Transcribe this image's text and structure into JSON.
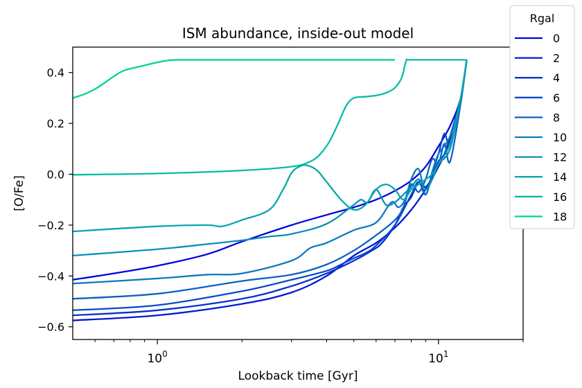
{
  "chart_data": {
    "type": "line",
    "title": "ISM abundance, inside-out model",
    "xlabel": "Lookback time [Gyr]",
    "ylabel": "[O/Fe]",
    "xscale": "log",
    "xlim": [
      0.5,
      20
    ],
    "ylim": [
      -0.65,
      0.5
    ],
    "grid": false,
    "legend": {
      "title": "Rgal",
      "placement": "outside-top-right"
    },
    "xticks_major": [
      {
        "value": 1,
        "base": "10",
        "exp": "0"
      },
      {
        "value": 10,
        "base": "10",
        "exp": "1"
      }
    ],
    "xticks_minor": [
      0.6,
      0.7,
      0.8,
      0.9,
      2,
      3,
      4,
      5,
      6,
      7,
      8,
      9,
      20
    ],
    "yticks": [
      {
        "value": 0.4,
        "label": "0.4"
      },
      {
        "value": 0.2,
        "label": "0.2"
      },
      {
        "value": 0.0,
        "label": "0.0"
      },
      {
        "value": -0.2,
        "label": "−0.2"
      },
      {
        "value": -0.4,
        "label": "−0.4"
      },
      {
        "value": -0.6,
        "label": "−0.6"
      }
    ],
    "series": [
      {
        "name": "0",
        "color": "#0000dd",
        "x": [
          0.5,
          0.7,
          1.0,
          1.5,
          2.0,
          3.0,
          4.0,
          5.0,
          6.0,
          7.0,
          8.0,
          9.0,
          10.0,
          11.0,
          12.0,
          12.6
        ],
        "y": [
          -0.415,
          -0.39,
          -0.36,
          -0.315,
          -0.265,
          -0.2,
          -0.16,
          -0.13,
          -0.1,
          -0.065,
          -0.025,
          0.03,
          0.11,
          0.19,
          0.3,
          0.45
        ]
      },
      {
        "name": "2",
        "color": "#0018d6",
        "x": [
          0.5,
          1.0,
          2.0,
          3.0,
          4.0,
          5.0,
          6.0,
          7.0,
          8.0,
          9.0,
          10.0,
          11.0,
          12.0,
          12.6
        ],
        "y": [
          -0.575,
          -0.555,
          -0.51,
          -0.465,
          -0.4,
          -0.32,
          -0.27,
          -0.21,
          -0.14,
          -0.06,
          0.03,
          0.13,
          0.3,
          0.45
        ]
      },
      {
        "name": "4",
        "color": "#0530d0",
        "x": [
          0.5,
          1.0,
          2.0,
          3.0,
          4.0,
          5.0,
          5.8,
          6.3,
          7.0,
          7.5,
          8.0,
          8.5,
          9.0,
          9.5,
          10.0,
          10.5,
          11.0,
          12.0,
          12.6
        ],
        "y": [
          -0.555,
          -0.535,
          -0.49,
          -0.44,
          -0.39,
          -0.34,
          -0.3,
          -0.27,
          -0.2,
          -0.13,
          -0.09,
          -0.03,
          -0.05,
          -0.01,
          0.05,
          0.08,
          0.15,
          0.3,
          0.45
        ]
      },
      {
        "name": "6",
        "color": "#0a48ca",
        "x": [
          0.5,
          1.0,
          2.0,
          3.0,
          4.0,
          4.5,
          5.0,
          5.5,
          6.0,
          7.0,
          8.0,
          8.5,
          9.0,
          9.5,
          10.0,
          10.5,
          11.0,
          12.0,
          12.6
        ],
        "y": [
          -0.535,
          -0.515,
          -0.46,
          -0.415,
          -0.38,
          -0.355,
          -0.33,
          -0.31,
          -0.28,
          -0.2,
          -0.08,
          -0.03,
          -0.08,
          0.0,
          0.08,
          0.16,
          0.12,
          0.3,
          0.45
        ]
      },
      {
        "name": "8",
        "color": "#0c60c4",
        "x": [
          0.5,
          1.0,
          2.0,
          3.0,
          4.0,
          5.0,
          6.0,
          7.0,
          7.5,
          8.0,
          8.5,
          9.0,
          9.5,
          10.0,
          10.5,
          11.0,
          12.0,
          12.6
        ],
        "y": [
          -0.49,
          -0.47,
          -0.42,
          -0.395,
          -0.355,
          -0.3,
          -0.24,
          -0.18,
          -0.13,
          -0.04,
          -0.07,
          -0.02,
          0.06,
          0.04,
          0.12,
          0.05,
          0.28,
          0.45
        ]
      },
      {
        "name": "10",
        "color": "#0c78be",
        "x": [
          0.5,
          1.0,
          1.5,
          2.0,
          3.0,
          3.5,
          4.0,
          5.0,
          6.0,
          6.8,
          7.2,
          7.6,
          8.0,
          8.5,
          9.0,
          9.5,
          10.0,
          11.0,
          12.0,
          12.6
        ],
        "y": [
          -0.43,
          -0.41,
          -0.395,
          -0.39,
          -0.34,
          -0.29,
          -0.27,
          -0.22,
          -0.19,
          -0.11,
          -0.13,
          -0.1,
          -0.02,
          0.02,
          -0.08,
          0.01,
          0.08,
          0.15,
          0.3,
          0.45
        ]
      },
      {
        "name": "12",
        "color": "#0a8fb6",
        "x": [
          0.5,
          1.0,
          1.5,
          2.0,
          2.5,
          3.0,
          4.0,
          5.0,
          5.3,
          5.6,
          6.0,
          6.5,
          7.0,
          7.5,
          8.0,
          8.5,
          9.0,
          9.5,
          10.0,
          11.0,
          12.0,
          12.6
        ],
        "y": [
          -0.32,
          -0.295,
          -0.275,
          -0.26,
          -0.245,
          -0.235,
          -0.195,
          -0.12,
          -0.1,
          -0.11,
          -0.06,
          -0.12,
          -0.11,
          -0.08,
          -0.05,
          -0.02,
          -0.06,
          -0.02,
          0.04,
          0.1,
          0.3,
          0.45
        ]
      },
      {
        "name": "14",
        "color": "#08a6ad",
        "x": [
          0.5,
          1.0,
          1.5,
          1.7,
          2.0,
          2.5,
          2.8,
          3.0,
          3.2,
          3.4,
          3.7,
          4.0,
          4.5,
          5.0,
          5.5,
          6.0,
          6.5,
          7.0,
          7.5,
          8.0,
          8.5,
          9.0,
          9.5,
          10.0,
          11.0,
          12.0,
          12.6
        ],
        "y": [
          -0.225,
          -0.205,
          -0.2,
          -0.205,
          -0.18,
          -0.14,
          -0.06,
          0.005,
          0.03,
          0.035,
          0.015,
          -0.03,
          -0.1,
          -0.14,
          -0.12,
          -0.06,
          -0.04,
          -0.06,
          -0.1,
          -0.06,
          -0.04,
          -0.02,
          0.0,
          0.04,
          0.12,
          0.3,
          0.45
        ]
      },
      {
        "name": "16",
        "color": "#05bca2",
        "x": [
          0.5,
          1.0,
          2.0,
          3.0,
          3.5,
          3.8,
          4.1,
          4.4,
          4.7,
          5.0,
          5.5,
          6.0,
          6.5,
          7.0,
          7.4,
          7.6,
          7.7,
          7.8,
          9.0,
          10.0,
          11.0,
          12.0,
          12.6
        ],
        "y": [
          -0.002,
          0.003,
          0.015,
          0.03,
          0.05,
          0.08,
          0.13,
          0.2,
          0.27,
          0.3,
          0.305,
          0.31,
          0.32,
          0.34,
          0.38,
          0.43,
          0.45,
          0.45,
          0.45,
          0.45,
          0.45,
          0.45,
          0.45
        ]
      },
      {
        "name": "18",
        "color": "#00d496",
        "x": [
          0.5,
          0.55,
          0.6,
          0.65,
          0.7,
          0.75,
          0.8,
          0.9,
          1.0,
          1.1,
          1.2,
          1.5,
          2.0,
          3.0,
          4.0,
          5.0,
          6.0,
          7.0
        ],
        "y": [
          0.3,
          0.315,
          0.335,
          0.36,
          0.385,
          0.405,
          0.415,
          0.428,
          0.44,
          0.448,
          0.45,
          0.45,
          0.45,
          0.45,
          0.45,
          0.45,
          0.45,
          0.45
        ]
      }
    ]
  }
}
